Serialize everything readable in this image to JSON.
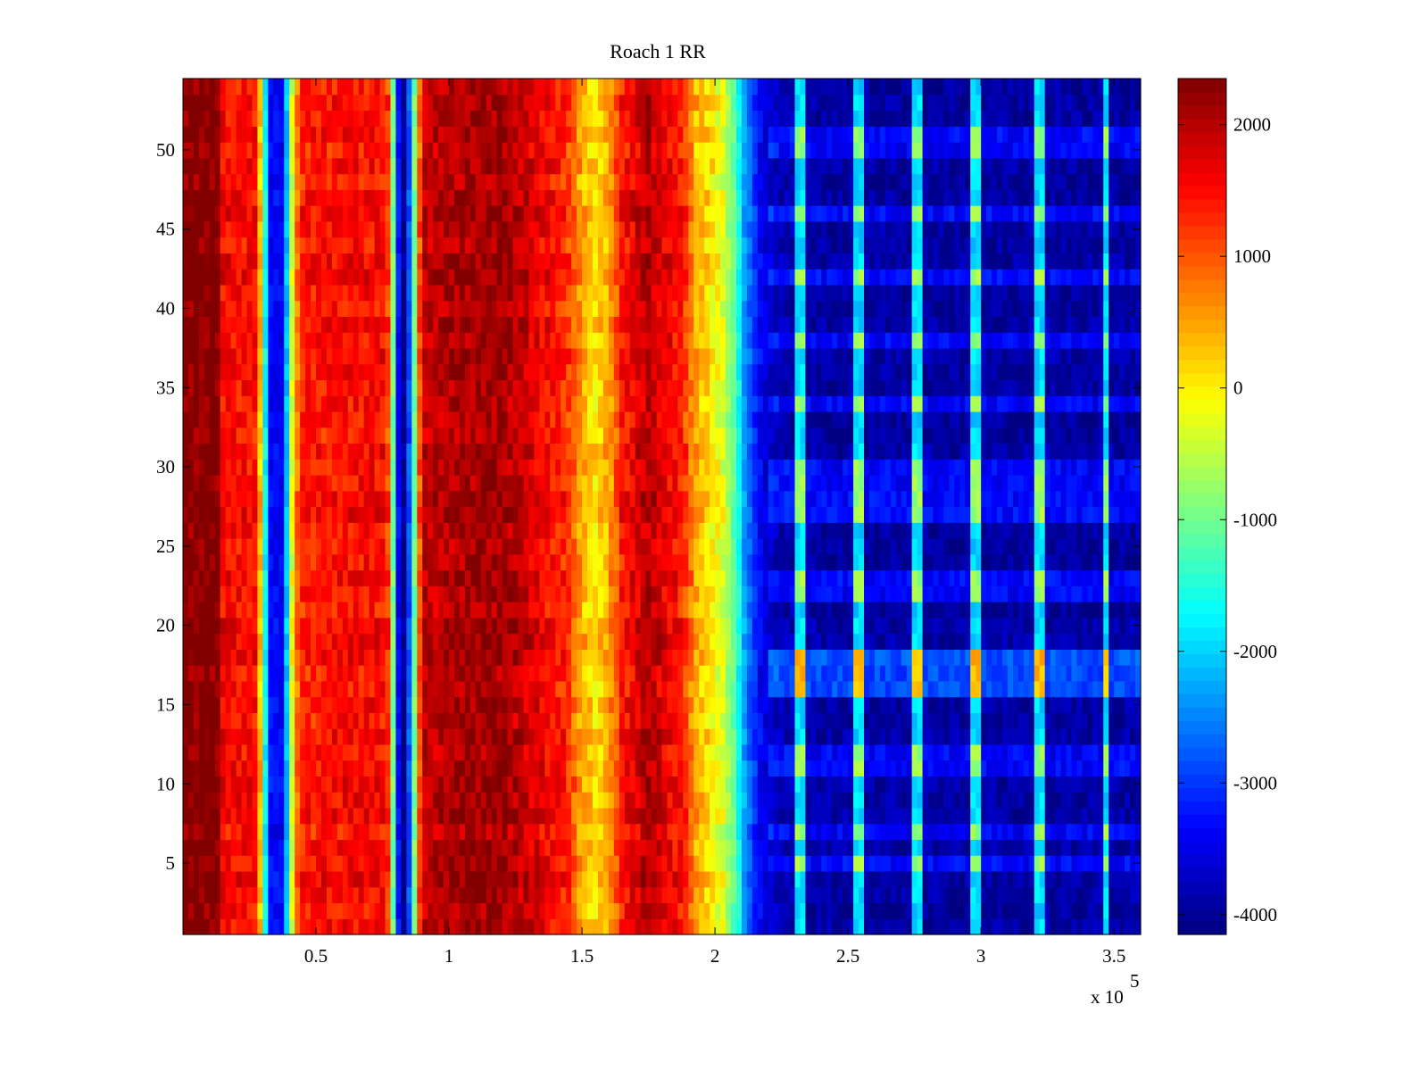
{
  "chart_data": {
    "type": "heatmap",
    "title": "Roach 1 RR",
    "xlabel": "",
    "ylabel": "",
    "x_multiplier_label": "x 10",
    "x_multiplier_exponent": "5",
    "xlim": [
      0,
      3.6
    ],
    "ylim": [
      0.5,
      54.5
    ],
    "x_ticks": [
      0.5,
      1,
      1.5,
      2,
      2.5,
      3,
      3.5
    ],
    "x_tick_labels": [
      "0.5",
      "1",
      "1.5",
      "2",
      "2.5",
      "3",
      "3.5"
    ],
    "y_ticks": [
      5,
      10,
      15,
      20,
      25,
      30,
      35,
      40,
      45,
      50
    ],
    "y_tick_labels": [
      "5",
      "10",
      "15",
      "20",
      "25",
      "30",
      "35",
      "40",
      "45",
      "50"
    ],
    "rows": 54,
    "colorbar": {
      "colormap": "jet",
      "range": [
        -4150,
        2350
      ],
      "ticks": [
        2000,
        1000,
        0,
        -1000,
        -2000,
        -3000,
        -4000
      ],
      "tick_labels": [
        "2000",
        "1000",
        "0",
        "-1000",
        "-2000",
        "-3000",
        "-4000"
      ]
    },
    "column_profile": {
      "x": [
        0.0,
        0.14,
        0.15,
        0.28,
        0.3,
        0.33,
        0.38,
        0.4,
        0.44,
        0.6,
        0.76,
        0.78,
        0.8,
        0.83,
        0.86,
        0.88,
        0.9,
        1.0,
        1.2,
        1.44,
        1.5,
        1.55,
        1.6,
        1.65,
        1.75,
        1.88,
        1.93,
        1.98,
        2.03,
        2.08,
        2.11,
        2.14,
        2.18,
        2.25,
        2.4,
        3.6
      ],
      "values": [
        2350,
        2350,
        1550,
        1450,
        -900,
        -3300,
        -3400,
        -800,
        1350,
        1500,
        1500,
        900,
        -2900,
        -4100,
        -2200,
        200,
        1900,
        2050,
        2150,
        1300,
        450,
        100,
        450,
        1400,
        2000,
        1350,
        400,
        100,
        -300,
        -1300,
        -2300,
        -2900,
        -3500,
        -3850,
        -3950,
        -3950
      ]
    },
    "vertical_lines_x": [
      2.32,
      2.54,
      2.76,
      2.98,
      3.22,
      3.47
    ],
    "brighter_rows": [
      5,
      7,
      11,
      12,
      16,
      17,
      18,
      22,
      23,
      27,
      28,
      29,
      30,
      34,
      38,
      42,
      46,
      50,
      51
    ],
    "brightest_rows": [
      16,
      17,
      18
    ]
  }
}
